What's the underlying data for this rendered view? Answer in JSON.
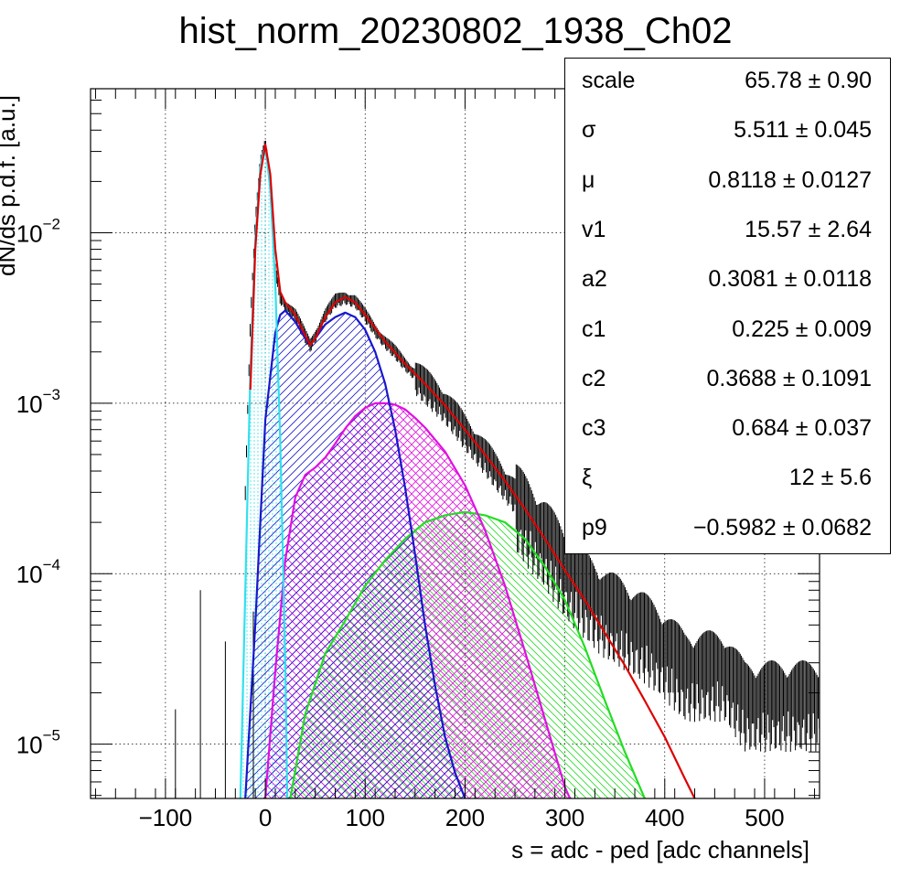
{
  "chart_data": {
    "type": "line",
    "title": "hist_norm_20230802_1938_Ch02",
    "xlabel": "s = adc - ped [adc channels]",
    "ylabel": "dN/ds p.d.f. [a.u.]",
    "xlim": [
      -175,
      555
    ],
    "ylim": [
      4.8e-06,
      0.07
    ],
    "yscale": "log",
    "grid": true,
    "x_ticks": [
      {
        "value": -100,
        "label": "−100"
      },
      {
        "value": 0,
        "label": "0"
      },
      {
        "value": 100,
        "label": "100"
      },
      {
        "value": 200,
        "label": "200"
      },
      {
        "value": 300,
        "label": "300"
      },
      {
        "value": 400,
        "label": "400"
      },
      {
        "value": 500,
        "label": "500"
      }
    ],
    "y_ticks": [
      {
        "value": 1e-05,
        "base": "10",
        "exp": "−5"
      },
      {
        "value": 0.0001,
        "base": "10",
        "exp": "−4"
      },
      {
        "value": 0.001,
        "base": "10",
        "exp": "−3"
      },
      {
        "value": 0.01,
        "base": "10",
        "exp": "−2"
      }
    ],
    "series": [
      {
        "key": "data",
        "kind": "histogram",
        "color": "#000000",
        "x": [
          -20,
          -15,
          -10,
          -5,
          0,
          5,
          10,
          15,
          20,
          30,
          40,
          45,
          50,
          60,
          70,
          80,
          90,
          100,
          110,
          120,
          130,
          140,
          150,
          160,
          180,
          200,
          220,
          240,
          260,
          280,
          300,
          320,
          340,
          360,
          380,
          400,
          420,
          440,
          460,
          480,
          500,
          520,
          540,
          555
        ],
        "y": [
          0.0003,
          0.003,
          0.012,
          0.026,
          0.033,
          0.02,
          0.006,
          0.0042,
          0.0038,
          0.0033,
          0.0025,
          0.0022,
          0.0025,
          0.0033,
          0.004,
          0.0042,
          0.004,
          0.0033,
          0.0027,
          0.0023,
          0.002,
          0.0017,
          0.0015,
          0.0013,
          0.001,
          0.0007,
          0.0005,
          0.00035,
          0.00025,
          0.00018,
          0.00012,
          9e-05,
          7e-05,
          6e-05,
          5e-05,
          4e-05,
          3e-05,
          3e-05,
          3e-05,
          2e-05,
          2e-05,
          2e-05,
          2e-05,
          2e-05
        ]
      },
      {
        "key": "total",
        "kind": "line",
        "color": "#dd0000",
        "x": [
          -15,
          -10,
          -5,
          0,
          5,
          10,
          15,
          20,
          30,
          40,
          45,
          50,
          60,
          70,
          80,
          90,
          100,
          120,
          140,
          160,
          180,
          200,
          220,
          240,
          260,
          280,
          300,
          320,
          340,
          360,
          380,
          400,
          420,
          430
        ],
        "y": [
          0.0012,
          0.008,
          0.022,
          0.033,
          0.022,
          0.008,
          0.0045,
          0.0039,
          0.0033,
          0.0025,
          0.0022,
          0.0024,
          0.0032,
          0.0039,
          0.0042,
          0.0039,
          0.0033,
          0.0023,
          0.0017,
          0.0013,
          0.00097,
          0.0007,
          0.0005,
          0.00035,
          0.00024,
          0.00016,
          0.000105,
          7e-05,
          4.5e-05,
          2.9e-05,
          1.8e-05,
          1.1e-05,
          6.3e-06,
          4.7e-06
        ]
      },
      {
        "key": "pedestal",
        "kind": "line",
        "color": "#33e0ee",
        "fill": "dots",
        "x": [
          -25,
          -20,
          -15,
          -10,
          -5,
          -2,
          0,
          2,
          5,
          10,
          15,
          20,
          22
        ],
        "y": [
          4.8e-06,
          8e-05,
          0.0015,
          0.009,
          0.024,
          0.03,
          0.03,
          0.026,
          0.018,
          0.005,
          0.0006,
          3e-05,
          4.8e-06
        ]
      },
      {
        "key": "pe1",
        "kind": "line",
        "color": "#1818cc",
        "fill": "hatch",
        "x": [
          -20,
          -10,
          0,
          10,
          15,
          20,
          30,
          40,
          45,
          50,
          60,
          70,
          80,
          90,
          100,
          110,
          120,
          130,
          140,
          150,
          160,
          170,
          180,
          190,
          200
        ],
        "y": [
          4.8e-06,
          5e-05,
          0.0008,
          0.0026,
          0.0033,
          0.0035,
          0.003,
          0.0024,
          0.0022,
          0.0024,
          0.0029,
          0.0032,
          0.0034,
          0.0032,
          0.0027,
          0.002,
          0.0013,
          0.0007,
          0.00032,
          0.00013,
          5e-05,
          2.2e-05,
          1.1e-05,
          6.8e-06,
          4.8e-06
        ]
      },
      {
        "key": "pe2",
        "kind": "line",
        "color": "#e010e0",
        "fill": "crosshatch",
        "x": [
          0,
          10,
          20,
          30,
          40,
          50,
          60,
          70,
          80,
          90,
          100,
          110,
          120,
          130,
          140,
          150,
          160,
          180,
          200,
          220,
          240,
          260,
          280,
          300,
          305
        ],
        "y": [
          4.8e-06,
          2.7e-05,
          0.00012,
          0.00028,
          0.00038,
          0.00042,
          0.00048,
          0.00058,
          0.00071,
          0.00084,
          0.00094,
          0.001,
          0.001,
          0.00098,
          0.00092,
          0.00082,
          0.00072,
          0.00052,
          0.00033,
          0.00018,
          8.5e-05,
          3.5e-05,
          1.4e-05,
          5.6e-06,
          4.8e-06
        ]
      },
      {
        "key": "pe3",
        "kind": "line",
        "color": "#22dd22",
        "fill": "hatch-back",
        "x": [
          25,
          40,
          60,
          80,
          100,
          120,
          140,
          160,
          180,
          200,
          220,
          240,
          260,
          280,
          300,
          320,
          340,
          360,
          380
        ],
        "y": [
          4.8e-06,
          1.5e-05,
          3.4e-05,
          5.3e-05,
          8.5e-05,
          0.00012,
          0.00016,
          0.0002,
          0.00022,
          0.00023,
          0.00022,
          0.0002,
          0.00016,
          0.00011,
          7e-05,
          3.7e-05,
          1.8e-05,
          9e-06,
          4.8e-06
        ]
      }
    ]
  },
  "stats": {
    "rows": [
      {
        "name": "scale",
        "value": "65.78 ± 0.90"
      },
      {
        "name": "σ",
        "value": "5.511 ± 0.045"
      },
      {
        "name": "μ",
        "value": "0.8118 ± 0.0127"
      },
      {
        "name": "v1",
        "value": "15.57 ± 2.64"
      },
      {
        "name": "a2",
        "value": "0.3081 ± 0.0118"
      },
      {
        "name": "c1",
        "value": "0.225 ± 0.009"
      },
      {
        "name": "c2",
        "value": "0.3688 ± 0.1091"
      },
      {
        "name": "c3",
        "value": "0.684 ± 0.037"
      },
      {
        "name": "ξ",
        "value": "12 ± 5.6"
      },
      {
        "name": "p9",
        "value": "−0.5982 ± 0.0682"
      }
    ]
  }
}
